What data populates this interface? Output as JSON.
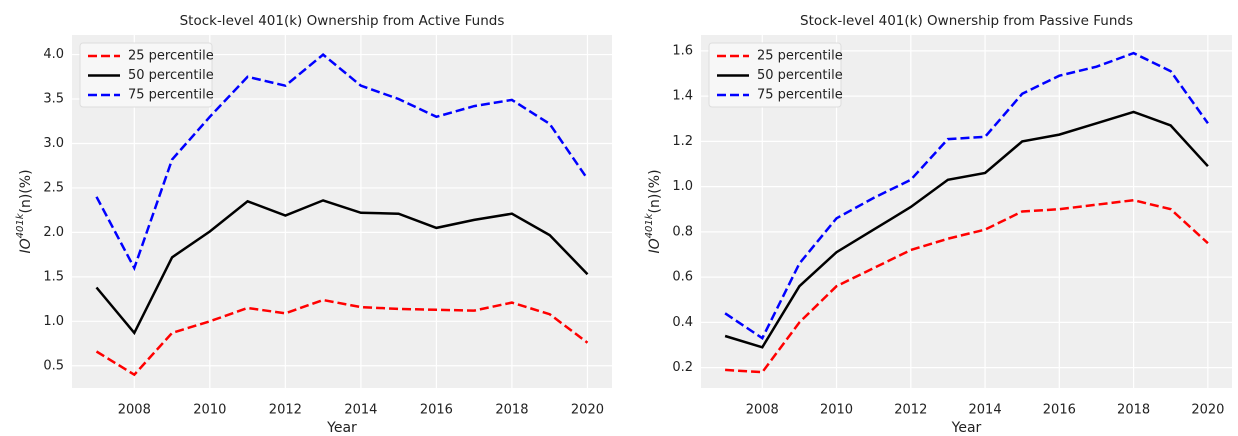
{
  "chart_data": [
    {
      "type": "line",
      "title": "Stock-level 401(k) Ownership from Active Funds",
      "xlabel": "Year",
      "ylabel": {
        "base": "IO",
        "sup": "401k",
        "rest": "(n)(%)"
      },
      "x": [
        2007,
        2008,
        2009,
        2010,
        2011,
        2012,
        2013,
        2014,
        2015,
        2016,
        2017,
        2018,
        2019,
        2020
      ],
      "xlim": [
        2006.35,
        2020.65
      ],
      "xticks": [
        2008,
        2010,
        2012,
        2014,
        2016,
        2018,
        2020
      ],
      "ylim": [
        0.25,
        4.22
      ],
      "yticks": [
        0.5,
        1.0,
        1.5,
        2.0,
        2.5,
        3.0,
        3.5,
        4.0
      ],
      "ytick_labels": [
        "0.5",
        "1.0",
        "1.5",
        "2.0",
        "2.5",
        "3.0",
        "3.5",
        "4.0"
      ],
      "grid": true,
      "legend": "upper left",
      "series": [
        {
          "name": "25 percentile",
          "color": "#ff0000",
          "dash": true,
          "values": [
            0.66,
            0.4,
            0.87,
            1.0,
            1.15,
            1.09,
            1.24,
            1.16,
            1.14,
            1.13,
            1.12,
            1.21,
            1.08,
            0.76
          ]
        },
        {
          "name": "50 percentile",
          "color": "#000000",
          "dash": false,
          "values": [
            1.38,
            0.87,
            1.72,
            2.01,
            2.35,
            2.19,
            2.36,
            2.22,
            2.21,
            2.05,
            2.14,
            2.21,
            1.97,
            1.53
          ]
        },
        {
          "name": "75 percentile",
          "color": "#0000ff",
          "dash": true,
          "values": [
            2.4,
            1.6,
            2.82,
            3.3,
            3.75,
            3.65,
            4.0,
            3.65,
            3.5,
            3.3,
            3.42,
            3.49,
            3.22,
            2.6
          ]
        }
      ]
    },
    {
      "type": "line",
      "title": "Stock-level 401(k) Ownership from Passive Funds",
      "xlabel": "Year",
      "ylabel": {
        "base": "IO",
        "sup": "401k",
        "rest": "(n)(%)"
      },
      "x": [
        2007,
        2008,
        2009,
        2010,
        2011,
        2012,
        2013,
        2014,
        2015,
        2016,
        2017,
        2018,
        2019,
        2020
      ],
      "xlim": [
        2006.35,
        2020.65
      ],
      "xticks": [
        2008,
        2010,
        2012,
        2014,
        2016,
        2018,
        2020
      ],
      "ylim": [
        0.11,
        1.67
      ],
      "yticks": [
        0.2,
        0.4,
        0.6,
        0.8,
        1.0,
        1.2,
        1.4,
        1.6
      ],
      "ytick_labels": [
        "0.2",
        "0.4",
        "0.6",
        "0.8",
        "1.0",
        "1.2",
        "1.4",
        "1.6"
      ],
      "grid": true,
      "legend": "upper left",
      "series": [
        {
          "name": "25 percentile",
          "color": "#ff0000",
          "dash": true,
          "values": [
            0.19,
            0.18,
            0.4,
            0.56,
            0.64,
            0.72,
            0.77,
            0.81,
            0.89,
            0.9,
            0.92,
            0.94,
            0.9,
            0.75
          ]
        },
        {
          "name": "50 percentile",
          "color": "#000000",
          "dash": false,
          "values": [
            0.34,
            0.29,
            0.56,
            0.71,
            0.81,
            0.91,
            1.03,
            1.06,
            1.2,
            1.23,
            1.28,
            1.33,
            1.27,
            1.09
          ]
        },
        {
          "name": "75 percentile",
          "color": "#0000ff",
          "dash": true,
          "values": [
            0.44,
            0.33,
            0.66,
            0.86,
            0.95,
            1.03,
            1.21,
            1.22,
            1.41,
            1.49,
            1.53,
            1.59,
            1.51,
            1.28
          ]
        }
      ]
    }
  ]
}
